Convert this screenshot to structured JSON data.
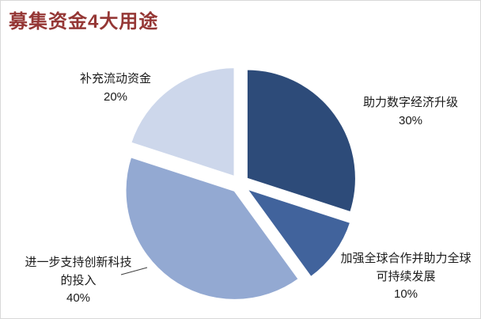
{
  "title": "募集资金4大用途",
  "chart_data": {
    "type": "pie",
    "title": "募集资金4大用途",
    "direction": "clockwise",
    "start_angle_deg": 0,
    "exploded": true,
    "legend_position": "none",
    "labels_outside": true,
    "slices": [
      {
        "label": "助力数字经济升级",
        "value": 30,
        "pct_label": "30%",
        "color": "#2D4B79"
      },
      {
        "label": "加强全球合作并助力全球可持续发展",
        "value": 10,
        "pct_label": "10%",
        "color": "#41639C"
      },
      {
        "label": "进一步支持创新科技的投入",
        "value": 40,
        "pct_label": "40%",
        "color": "#93A9D2"
      },
      {
        "label": "补充流动资金",
        "value": 20,
        "pct_label": "20%",
        "color": "#CDD7EB"
      }
    ]
  }
}
